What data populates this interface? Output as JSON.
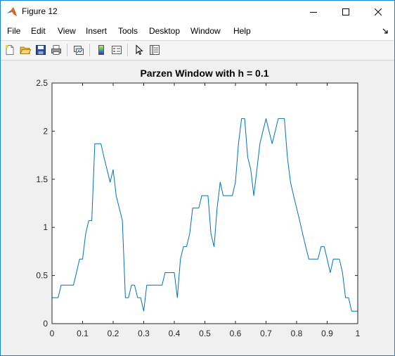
{
  "window": {
    "title": "Figure 12"
  },
  "menu": [
    "File",
    "Edit",
    "View",
    "Insert",
    "Tools",
    "Desktop",
    "Window",
    "Help"
  ],
  "toolbar": {
    "buttons": [
      "new-figure-icon",
      "open-file-icon",
      "save-icon",
      "print-icon",
      "link-plot-icon",
      "insert-colorbar-icon",
      "insert-legend-icon",
      "edit-plot-pointer-icon",
      "property-inspector-icon"
    ]
  },
  "chart_data": {
    "type": "line",
    "title": "Parzen Window with h = 0.1",
    "xlabel": "",
    "ylabel": "",
    "xlim": [
      0,
      1
    ],
    "ylim": [
      0,
      2.5
    ],
    "xticks": [
      "0",
      "0.1",
      "0.2",
      "0.3",
      "0.4",
      "0.5",
      "0.6",
      "0.7",
      "0.8",
      "0.9",
      "1"
    ],
    "yticks": [
      "0",
      "0.5",
      "1",
      "1.5",
      "2",
      "2.5"
    ],
    "grid": false,
    "line_color": "#0072bd",
    "x": [
      0,
      0.01,
      0.02,
      0.03,
      0.04,
      0.05,
      0.06,
      0.07,
      0.08,
      0.09,
      0.1,
      0.11,
      0.12,
      0.13,
      0.14,
      0.15,
      0.16,
      0.17,
      0.18,
      0.19,
      0.2,
      0.21,
      0.22,
      0.23,
      0.24,
      0.25,
      0.26,
      0.27,
      0.28,
      0.29,
      0.3,
      0.31,
      0.32,
      0.33,
      0.34,
      0.35,
      0.36,
      0.37,
      0.38,
      0.39,
      0.4,
      0.41,
      0.42,
      0.43,
      0.44,
      0.45,
      0.46,
      0.47,
      0.48,
      0.49,
      0.5,
      0.51,
      0.52,
      0.53,
      0.54,
      0.55,
      0.56,
      0.57,
      0.58,
      0.59,
      0.6,
      0.61,
      0.62,
      0.63,
      0.64,
      0.65,
      0.66,
      0.67,
      0.68,
      0.69,
      0.7,
      0.71,
      0.72,
      0.73,
      0.74,
      0.75,
      0.76,
      0.77,
      0.78,
      0.79,
      0.8,
      0.81,
      0.82,
      0.83,
      0.84,
      0.85,
      0.86,
      0.87,
      0.88,
      0.89,
      0.9,
      0.91,
      0.92,
      0.93,
      0.94,
      0.95,
      0.96,
      0.97,
      0.98,
      0.99,
      1
    ],
    "y": [
      0.27,
      0.27,
      0.27,
      0.4,
      0.4,
      0.4,
      0.4,
      0.4,
      0.53,
      0.67,
      0.67,
      0.93,
      1.07,
      1.07,
      1.87,
      1.87,
      1.87,
      1.73,
      1.6,
      1.47,
      1.6,
      1.33,
      1.2,
      1.07,
      0.27,
      0.27,
      0.4,
      0.4,
      0.27,
      0.27,
      0.13,
      0.4,
      0.4,
      0.4,
      0.4,
      0.4,
      0.4,
      0.53,
      0.53,
      0.53,
      0.53,
      0.27,
      0.67,
      0.8,
      0.8,
      0.93,
      1.2,
      1.2,
      1.2,
      1.33,
      1.33,
      1.33,
      0.93,
      0.8,
      1.2,
      1.47,
      1.33,
      1.33,
      1.33,
      1.33,
      1.47,
      1.87,
      2.13,
      2.13,
      1.73,
      1.6,
      1.33,
      1.6,
      1.87,
      2.0,
      2.13,
      2.0,
      1.87,
      2.0,
      2.13,
      2.13,
      2.13,
      1.73,
      1.47,
      1.33,
      1.2,
      1.07,
      0.93,
      0.8,
      0.67,
      0.67,
      0.67,
      0.67,
      0.8,
      0.8,
      0.67,
      0.53,
      0.67,
      0.67,
      0.67,
      0.53,
      0.27,
      0.27,
      0.13,
      0.13,
      0.13
    ]
  }
}
